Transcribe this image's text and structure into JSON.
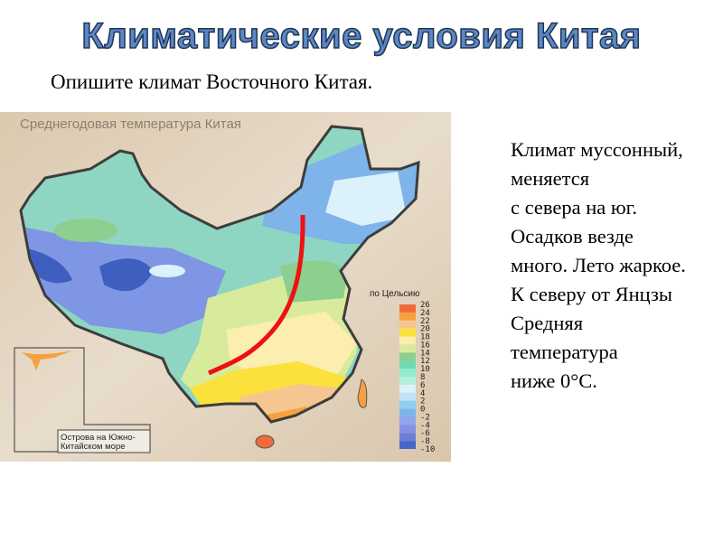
{
  "slide": {
    "title": "Климатические условия Китая",
    "subtitle": "Опишите климат Восточного Китая."
  },
  "map": {
    "title": "Среднегодовая температура Китая",
    "legend_title": "по Цельсию",
    "legend": [
      {
        "label": "26",
        "color": "#f26a3a"
      },
      {
        "label": "24",
        "color": "#f7a040"
      },
      {
        "label": "22",
        "color": "#f6c690"
      },
      {
        "label": "20",
        "color": "#fbe13c"
      },
      {
        "label": "18",
        "color": "#fbeeae"
      },
      {
        "label": "16",
        "color": "#d8eb9c"
      },
      {
        "label": "14",
        "color": "#8ccf8e"
      },
      {
        "label": "12",
        "color": "#6edcb0"
      },
      {
        "label": "10",
        "color": "#92ecd0"
      },
      {
        "label": "8",
        "color": "#b6f0dc"
      },
      {
        "label": "6",
        "color": "#dcf2fa"
      },
      {
        "label": "4",
        "color": "#bfe4f6"
      },
      {
        "label": "2",
        "color": "#8fcfef"
      },
      {
        "label": "0",
        "color": "#7eb4ea"
      },
      {
        "label": "-2",
        "color": "#8ea6ec"
      },
      {
        "label": "-4",
        "color": "#8592e4"
      },
      {
        "label": "-6",
        "color": "#6d7ed6"
      },
      {
        "label": "-8",
        "color": "#4866c6"
      },
      {
        "label": "-10",
        "color": ""
      }
    ],
    "inset_label_line1": "Острова на Южно-",
    "inset_label_line2": "Китайском море",
    "annotation_color": "#ee1111"
  },
  "description": {
    "lines": [
      "Климат муссонный,",
      "меняется",
      "с севера на юг.",
      "Осадков везде",
      "много. Лето жаркое.",
      "К северу от Янцзы",
      "Средняя",
      "температура",
      "ниже 0°С."
    ]
  }
}
